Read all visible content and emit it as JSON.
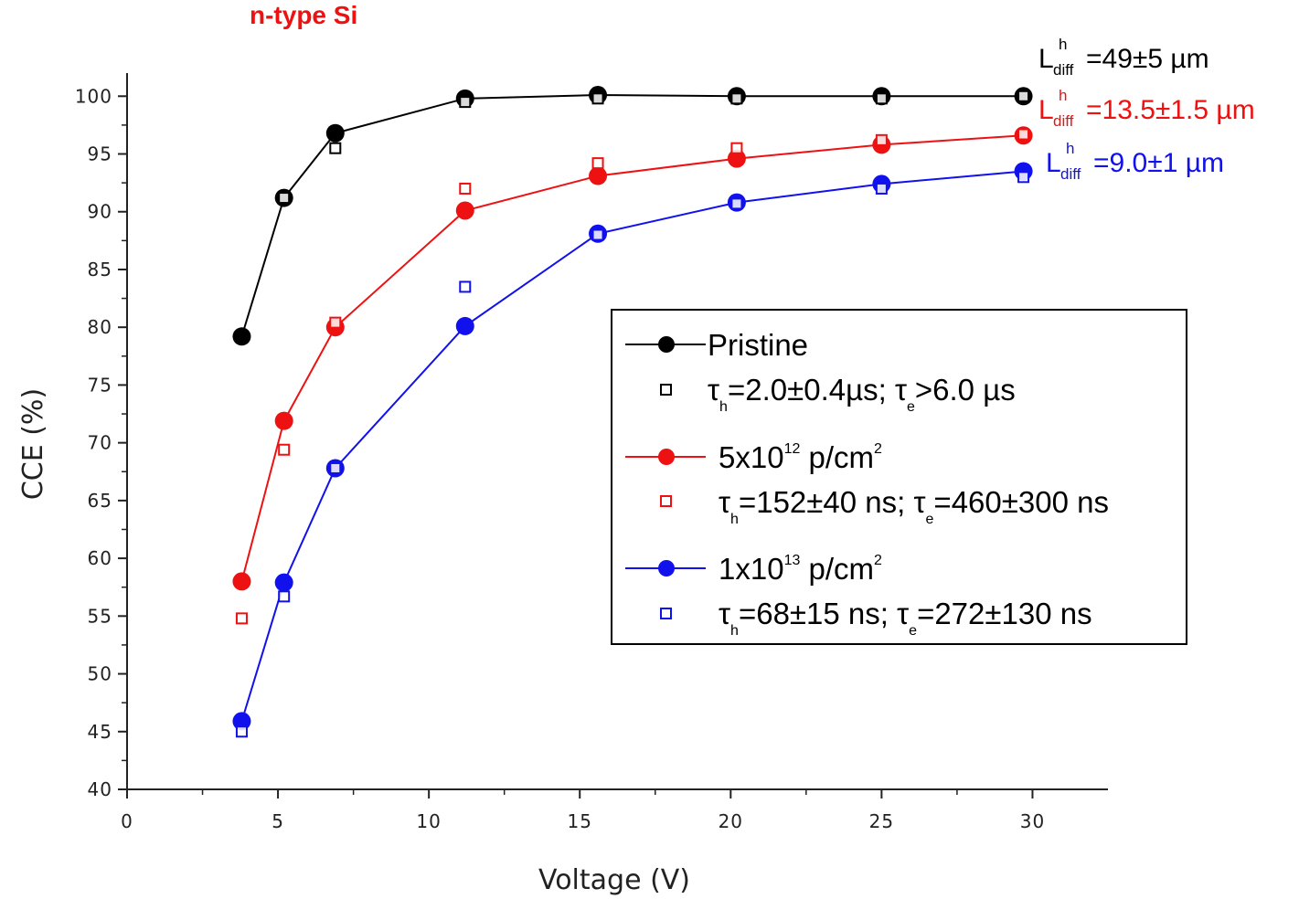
{
  "colors": {
    "pristine": "#000000",
    "p5e12": "#ee1111",
    "p1e13": "#1111ee",
    "axis": "#222222"
  },
  "annotations": {
    "title": "n-type Si",
    "ldiff_black": {
      "base": "L",
      "sup": "h",
      "sub": "diff",
      "value": "=49±5 µm"
    },
    "ldiff_red": {
      "base": "L",
      "sup": "h",
      "sub": "diff",
      "value": "=13.5±1.5 µm"
    },
    "ldiff_blue": {
      "base": "L",
      "sup": "h",
      "sub": "diff",
      "value": "=9.0±1 µm"
    }
  },
  "legend": {
    "pristine": "Pristine",
    "fit_black": {
      "a": "τ",
      "a_sub": "h",
      "b": "=2.0±0.4µs; ",
      "c": "τ",
      "c_sub": "e",
      "d": ">6.0 µs"
    },
    "p5e12": {
      "a": "5x10",
      "sup": "12",
      "b": " p/cm",
      "sup2": "2"
    },
    "fit_red": {
      "a": "τ",
      "a_sub": "h",
      "b": "=152±40 ns; ",
      "c": "τ",
      "c_sub": "e",
      "d": "=460±300 ns"
    },
    "p1e13": {
      "a": "1x10",
      "sup": "13",
      "b": " p/cm",
      "sup2": "2"
    },
    "fit_blue": {
      "a": "τ",
      "a_sub": "h",
      "b": "=68±15 ns; ",
      "c": "τ",
      "c_sub": "e",
      "d": "=272±130 ns"
    }
  },
  "chart_data": {
    "type": "scatter",
    "xlabel": "Voltage (V)",
    "ylabel": "CCE (%)",
    "xlim": [
      0,
      32.5
    ],
    "ylim": [
      40,
      102
    ],
    "xticks": [
      0,
      5,
      10,
      15,
      20,
      25,
      30
    ],
    "yticks": [
      40,
      45,
      50,
      55,
      60,
      65,
      70,
      75,
      80,
      85,
      90,
      95,
      100
    ],
    "grid": false,
    "legend_position": "center-right",
    "series": [
      {
        "name": "Pristine",
        "key": "pristine",
        "marker": "filled-circle",
        "line": true,
        "x": [
          3.8,
          5.2,
          6.9,
          11.2,
          15.6,
          20.2,
          25.0,
          29.7
        ],
        "y": [
          79.2,
          91.2,
          96.8,
          99.8,
          100.1,
          100.0,
          100.0,
          100.0
        ]
      },
      {
        "name": "τh=2.0±0.4µs; τe>6.0 µs",
        "key": "pristine",
        "marker": "open-square",
        "line": false,
        "x": [
          5.2,
          6.9,
          11.2,
          15.6,
          20.2,
          25.0,
          29.7
        ],
        "y": [
          91.2,
          95.5,
          99.5,
          99.8,
          99.8,
          99.8,
          100.0
        ]
      },
      {
        "name": "5x10^12 p/cm^2",
        "key": "p5e12",
        "marker": "filled-circle",
        "line": true,
        "x": [
          3.8,
          5.2,
          6.9,
          11.2,
          15.6,
          20.2,
          25.0,
          29.7
        ],
        "y": [
          58.0,
          71.9,
          80.0,
          90.1,
          93.1,
          94.6,
          95.8,
          96.6
        ]
      },
      {
        "name": "τh=152±40 ns; τe=460±300 ns",
        "key": "p5e12",
        "marker": "open-square",
        "line": false,
        "x": [
          3.8,
          5.2,
          6.9,
          11.2,
          15.6,
          20.2,
          25.0,
          29.7
        ],
        "y": [
          54.8,
          69.4,
          80.4,
          92.0,
          94.2,
          95.5,
          96.2,
          96.7
        ]
      },
      {
        "name": "1x10^13 p/cm^2",
        "key": "p1e13",
        "marker": "filled-circle",
        "line": true,
        "x": [
          3.8,
          5.2,
          6.9,
          11.2,
          15.6,
          20.2,
          25.0,
          29.7
        ],
        "y": [
          45.9,
          57.9,
          67.8,
          80.1,
          88.1,
          90.8,
          92.4,
          93.5
        ]
      },
      {
        "name": "τh=68±15 ns; τe=272±130 ns",
        "key": "p1e13",
        "marker": "open-square",
        "line": false,
        "x": [
          3.8,
          5.2,
          6.9,
          11.2,
          15.6,
          20.2,
          25.0,
          29.7
        ],
        "y": [
          45.0,
          56.7,
          67.8,
          83.5,
          88.0,
          90.7,
          92.0,
          93.0
        ]
      }
    ]
  }
}
